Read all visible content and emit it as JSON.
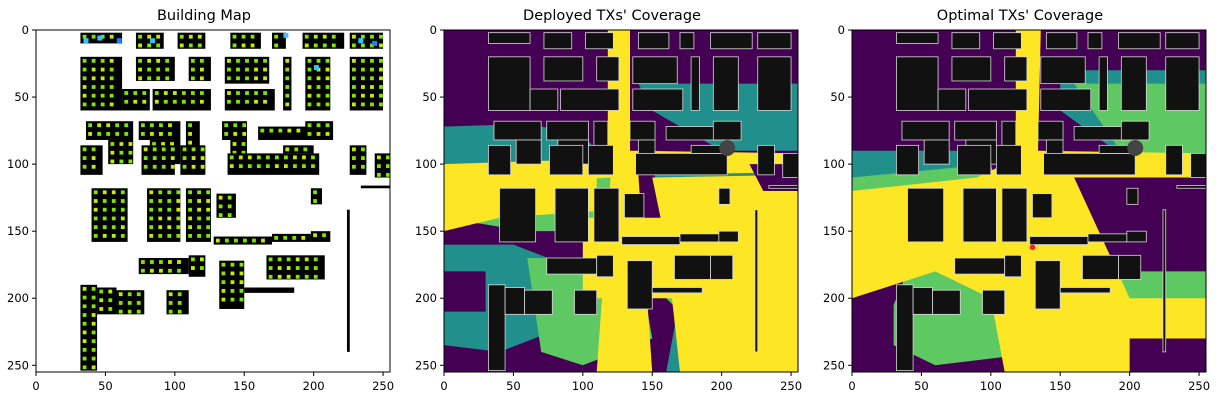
{
  "chart_data": [
    {
      "type": "heatmap",
      "title": "Building Map",
      "xlabel": "",
      "ylabel": "",
      "xlim": [
        0,
        255
      ],
      "ylim": [
        255,
        0
      ],
      "x_ticks": [
        0,
        50,
        100,
        150,
        200,
        250
      ],
      "y_ticks": [
        0,
        50,
        100,
        150,
        200,
        250
      ],
      "grid": false,
      "legend": "none",
      "colors": {
        "background": "#ffffff",
        "building": "#000000",
        "receiver": "#7fe600",
        "receiver_alt": "#c0f000",
        "transmitter": "#33c3ff",
        "transmitter_alt": "#1f7fff"
      }
    },
    {
      "type": "heatmap",
      "title": "Deployed TXs' Coverage",
      "xlabel": "",
      "ylabel": "",
      "xlim": [
        0,
        255
      ],
      "ylim": [
        255,
        0
      ],
      "x_ticks": [
        0,
        50,
        100,
        150,
        200,
        250
      ],
      "y_ticks": [
        0,
        50,
        100,
        150,
        200,
        250
      ],
      "grid": false,
      "legend": "none",
      "colors": {
        "low": "#440154",
        "mid_low": "#21908c",
        "mid_high": "#5ec962",
        "high": "#fde725",
        "building": "#111111",
        "outline": "#d8d8d8"
      }
    },
    {
      "type": "heatmap",
      "title": "Optimal TXs' Coverage",
      "xlabel": "",
      "ylabel": "",
      "xlim": [
        0,
        255
      ],
      "ylim": [
        255,
        0
      ],
      "x_ticks": [
        0,
        50,
        100,
        150,
        200,
        250
      ],
      "y_ticks": [
        0,
        50,
        100,
        150,
        200,
        250
      ],
      "grid": false,
      "legend": "none",
      "colors": {
        "low": "#440154",
        "mid_low": "#21908c",
        "mid_high": "#5ec962",
        "high": "#fde725",
        "building": "#111111",
        "outline": "#d8d8d8",
        "tx_marker": "#ff2020"
      },
      "tx_marker": {
        "x": 130,
        "y": 162
      }
    }
  ]
}
